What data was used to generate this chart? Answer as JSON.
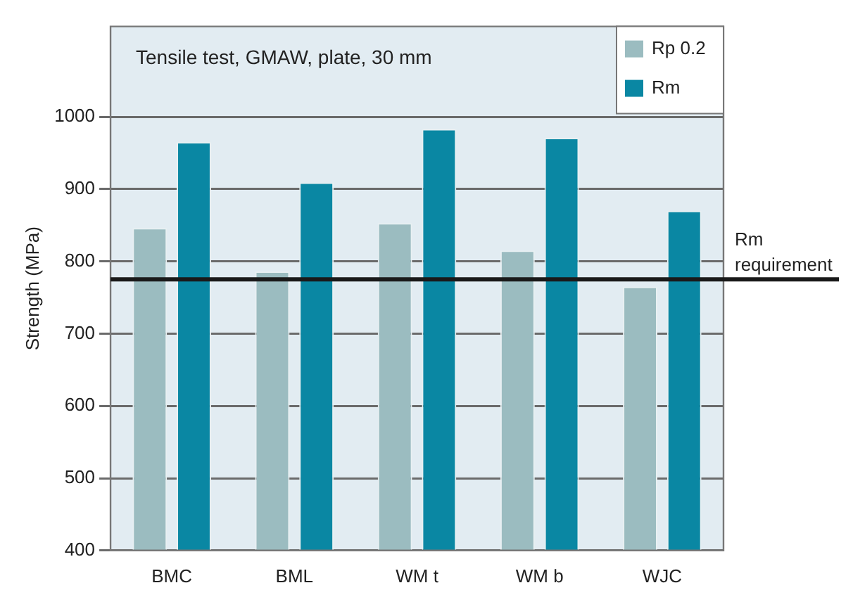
{
  "chart_data": {
    "type": "bar",
    "title": "Tensile test, GMAW, plate, 30 mm",
    "ylabel": "Strength (MPa)",
    "categories": [
      "BMC",
      "BML",
      "WM t",
      "WM b",
      "WJC"
    ],
    "series": [
      {
        "name": "Rp 0.2",
        "color": "#9bbcc0",
        "values": [
          846,
          786,
          853,
          815,
          765
        ]
      },
      {
        "name": "Rm",
        "color": "#0a87a3",
        "values": [
          965,
          909,
          983,
          971,
          870
        ]
      }
    ],
    "ylim": [
      400,
      1125
    ],
    "yticks": [
      400,
      500,
      600,
      700,
      800,
      900,
      1000
    ],
    "grid": "y",
    "legend": "top right",
    "ref_lines": [
      {
        "axis": "y",
        "value": 775,
        "label": "Rm requirement",
        "color": "#1a1a1a"
      }
    ]
  }
}
